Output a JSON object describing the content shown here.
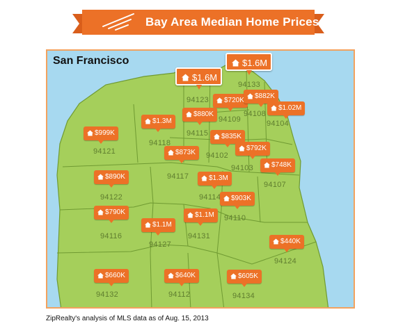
{
  "header": {
    "title": "Bay Area Median Home Prices"
  },
  "map": {
    "city_label": "San Francisco"
  },
  "colors": {
    "banner": "#ec7127",
    "pin": "#ec7127",
    "land": "#a5cf5b",
    "water": "#a7d9f0",
    "border": "#f3a25e"
  },
  "neighborhoods": [
    {
      "id": "n94121",
      "zip": "94121",
      "price": "$999K"
    },
    {
      "id": "n94118",
      "zip": "94118",
      "price": "$1.3M"
    },
    {
      "id": "n94123",
      "zip": "94123",
      "price": "$1.6M"
    },
    {
      "id": "n94133",
      "zip": "94133",
      "price": "$1.6M"
    },
    {
      "id": "n94109",
      "zip": "94109",
      "price": "$720K"
    },
    {
      "id": "n94108",
      "zip": "94108",
      "price": "$882K"
    },
    {
      "id": "n94104",
      "zip": "94104",
      "price": "$1.02M"
    },
    {
      "id": "n94115",
      "zip": "94115",
      "price": "$880K"
    },
    {
      "id": "n94102",
      "zip": "94102",
      "price": "$835K"
    },
    {
      "id": "n94103",
      "zip": "94103",
      "price": "$792K"
    },
    {
      "id": "n94117",
      "zip": "94117",
      "price": "$873K"
    },
    {
      "id": "n94107",
      "zip": "94107",
      "price": "$748K"
    },
    {
      "id": "n94122",
      "zip": "94122",
      "price": "$890K"
    },
    {
      "id": "n94114",
      "zip": "94114",
      "price": "$1.3M"
    },
    {
      "id": "n94110",
      "zip": "94110",
      "price": "$903K"
    },
    {
      "id": "n94116",
      "zip": "94116",
      "price": "$790K"
    },
    {
      "id": "n94127",
      "zip": "94127",
      "price": "$1.1M"
    },
    {
      "id": "n94131",
      "zip": "94131",
      "price": "$1.1M"
    },
    {
      "id": "n94124",
      "zip": "94124",
      "price": "$440K"
    },
    {
      "id": "n94132",
      "zip": "94132",
      "price": "$660K"
    },
    {
      "id": "n94112",
      "zip": "94112",
      "price": "$640K"
    },
    {
      "id": "n94134",
      "zip": "94134",
      "price": "$605K"
    }
  ],
  "footer": {
    "credit": "ZipRealty's analysis of MLS data as of Aug. 15, 2013"
  }
}
